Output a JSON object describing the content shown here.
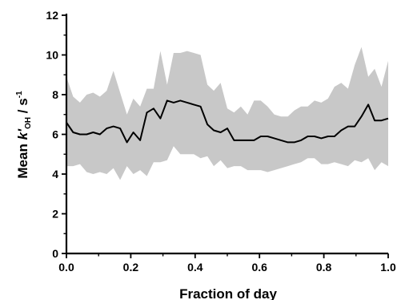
{
  "chart_data": {
    "type": "area",
    "title": "",
    "xlabel": "Fraction of day",
    "ylabel": {
      "prefix": "Mean ",
      "k": "k'",
      "subscript": "OH",
      "unit": " / s",
      "superscript": "-1"
    },
    "xlim": [
      0,
      1
    ],
    "ylim": [
      0,
      12
    ],
    "x_ticks": [
      "0.0",
      "0.2",
      "0.4",
      "0.6",
      "0.8",
      "1.0"
    ],
    "y_ticks": [
      "0",
      "2",
      "4",
      "6",
      "8",
      "10",
      "12"
    ],
    "x_tick_values": [
      0,
      0.2,
      0.4,
      0.6,
      0.8,
      1.0
    ],
    "y_tick_values": [
      0,
      2,
      4,
      6,
      8,
      10,
      12
    ],
    "grid": false,
    "band_color": "#c8c8c8",
    "line_color": "#000000",
    "series": [
      {
        "kind": "band",
        "x": [
          0.0,
          0.021,
          0.042,
          0.063,
          0.083,
          0.104,
          0.125,
          0.146,
          0.167,
          0.188,
          0.208,
          0.229,
          0.25,
          0.271,
          0.292,
          0.313,
          0.333,
          0.354,
          0.375,
          0.396,
          0.417,
          0.438,
          0.458,
          0.479,
          0.5,
          0.521,
          0.542,
          0.563,
          0.583,
          0.604,
          0.625,
          0.646,
          0.667,
          0.688,
          0.708,
          0.729,
          0.75,
          0.771,
          0.792,
          0.813,
          0.833,
          0.854,
          0.875,
          0.896,
          0.917,
          0.938,
          0.958,
          0.979,
          1.0
        ],
        "upper": [
          8.9,
          7.9,
          7.6,
          8.0,
          8.1,
          7.9,
          8.2,
          9.2,
          8.1,
          7.0,
          7.8,
          7.4,
          8.3,
          8.3,
          10.2,
          8.5,
          10.1,
          10.1,
          10.2,
          10.1,
          10.0,
          8.5,
          8.2,
          8.6,
          7.3,
          7.1,
          7.4,
          7.0,
          7.7,
          7.7,
          7.4,
          7.0,
          6.9,
          6.9,
          7.2,
          7.4,
          7.4,
          7.7,
          7.6,
          7.8,
          8.4,
          8.6,
          8.3,
          9.5,
          10.4,
          8.9,
          9.3,
          8.4,
          9.7
        ],
        "lower": [
          4.4,
          4.4,
          4.5,
          4.1,
          4.0,
          4.1,
          4.0,
          4.3,
          3.7,
          4.4,
          4.0,
          4.2,
          3.9,
          4.6,
          4.6,
          4.7,
          5.4,
          5.0,
          5.0,
          5.0,
          4.8,
          4.9,
          4.4,
          4.7,
          4.3,
          4.4,
          4.4,
          4.2,
          4.2,
          4.2,
          4.1,
          4.2,
          4.3,
          4.4,
          4.5,
          4.6,
          4.8,
          4.8,
          4.5,
          4.5,
          4.6,
          4.5,
          4.4,
          4.7,
          4.6,
          4.8,
          4.2,
          4.6,
          4.4
        ]
      },
      {
        "kind": "line",
        "x": [
          0.0,
          0.021,
          0.042,
          0.063,
          0.083,
          0.104,
          0.125,
          0.146,
          0.167,
          0.188,
          0.208,
          0.229,
          0.25,
          0.271,
          0.292,
          0.313,
          0.333,
          0.354,
          0.375,
          0.396,
          0.417,
          0.438,
          0.458,
          0.479,
          0.5,
          0.521,
          0.542,
          0.563,
          0.583,
          0.604,
          0.625,
          0.646,
          0.667,
          0.688,
          0.708,
          0.729,
          0.75,
          0.771,
          0.792,
          0.813,
          0.833,
          0.854,
          0.875,
          0.896,
          0.917,
          0.938,
          0.958,
          0.979,
          1.0
        ],
        "values": [
          6.6,
          6.1,
          6.0,
          6.0,
          6.1,
          6.0,
          6.3,
          6.4,
          6.3,
          5.6,
          6.1,
          5.7,
          7.1,
          7.3,
          6.8,
          7.7,
          7.6,
          7.7,
          7.6,
          7.5,
          7.4,
          6.5,
          6.2,
          6.1,
          6.3,
          5.7,
          5.7,
          5.7,
          5.7,
          5.9,
          5.9,
          5.8,
          5.7,
          5.6,
          5.6,
          5.7,
          5.9,
          5.9,
          5.8,
          5.9,
          5.9,
          6.2,
          6.4,
          6.4,
          6.9,
          7.5,
          6.7,
          6.7,
          6.8
        ]
      }
    ]
  }
}
